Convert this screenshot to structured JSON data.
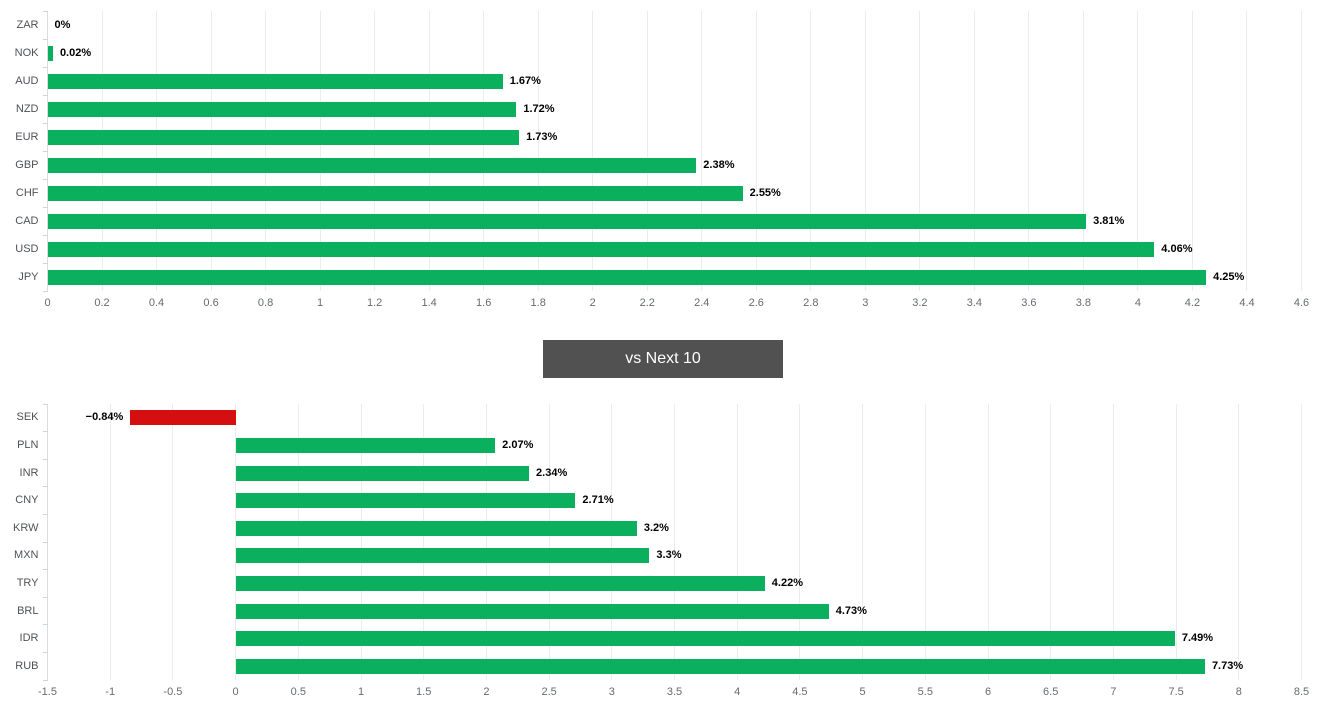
{
  "colors": {
    "positive_bar": "#0bb05e",
    "negative_bar": "#d50f0f",
    "gridline": "#ececec",
    "axis_line": "#d9dde2",
    "category_tick": "#cfd4d9",
    "category_text": "#4e5256",
    "x_tick_text": "#666b70",
    "value_text": "#000000",
    "button_bg": "#515151",
    "button_text": "#ffffff"
  },
  "button": {
    "label": "vs Next 10"
  },
  "chart_data": [
    {
      "type": "bar",
      "orientation": "horizontal",
      "title": "",
      "categories": [
        "ZAR",
        "NOK",
        "AUD",
        "NZD",
        "EUR",
        "GBP",
        "CHF",
        "CAD",
        "USD",
        "JPY"
      ],
      "values": [
        0,
        0.02,
        1.67,
        1.72,
        1.73,
        2.38,
        2.55,
        3.81,
        4.06,
        4.25
      ],
      "data_labels": [
        "0%",
        "0.02%",
        "1.67%",
        "1.72%",
        "1.73%",
        "2.38%",
        "2.55%",
        "3.81%",
        "4.06%",
        "4.25%"
      ],
      "xlim": [
        0,
        4.6
      ],
      "tick_step": 0.2,
      "x_ticks": [
        "0",
        "0.2",
        "0.4",
        "0.6",
        "0.8",
        "1",
        "1.2",
        "1.4",
        "1.6",
        "1.8",
        "2",
        "2.2",
        "2.4",
        "2.6",
        "2.8",
        "3",
        "3.2",
        "3.4",
        "3.6",
        "3.8",
        "4",
        "4.2",
        "4.4",
        "4.6"
      ],
      "grid": true,
      "legend": "none"
    },
    {
      "type": "bar",
      "orientation": "horizontal",
      "title": "",
      "categories": [
        "SEK",
        "PLN",
        "INR",
        "CNY",
        "KRW",
        "MXN",
        "TRY",
        "BRL",
        "IDR",
        "RUB"
      ],
      "values": [
        -0.84,
        2.07,
        2.34,
        2.71,
        3.2,
        3.3,
        4.22,
        4.73,
        7.49,
        7.73
      ],
      "data_labels": [
        "−0.84%",
        "2.07%",
        "2.34%",
        "2.71%",
        "3.2%",
        "3.3%",
        "4.22%",
        "4.73%",
        "7.49%",
        "7.73%"
      ],
      "xlim": [
        -1.5,
        8.5
      ],
      "tick_step": 0.5,
      "x_ticks": [
        "-1.5",
        "-1",
        "-0.5",
        "0",
        "0.5",
        "1",
        "1.5",
        "2",
        "2.5",
        "3",
        "3.5",
        "4",
        "4.5",
        "5",
        "5.5",
        "6",
        "6.5",
        "7",
        "7.5",
        "8",
        "8.5"
      ],
      "grid": true,
      "legend": "none"
    }
  ]
}
